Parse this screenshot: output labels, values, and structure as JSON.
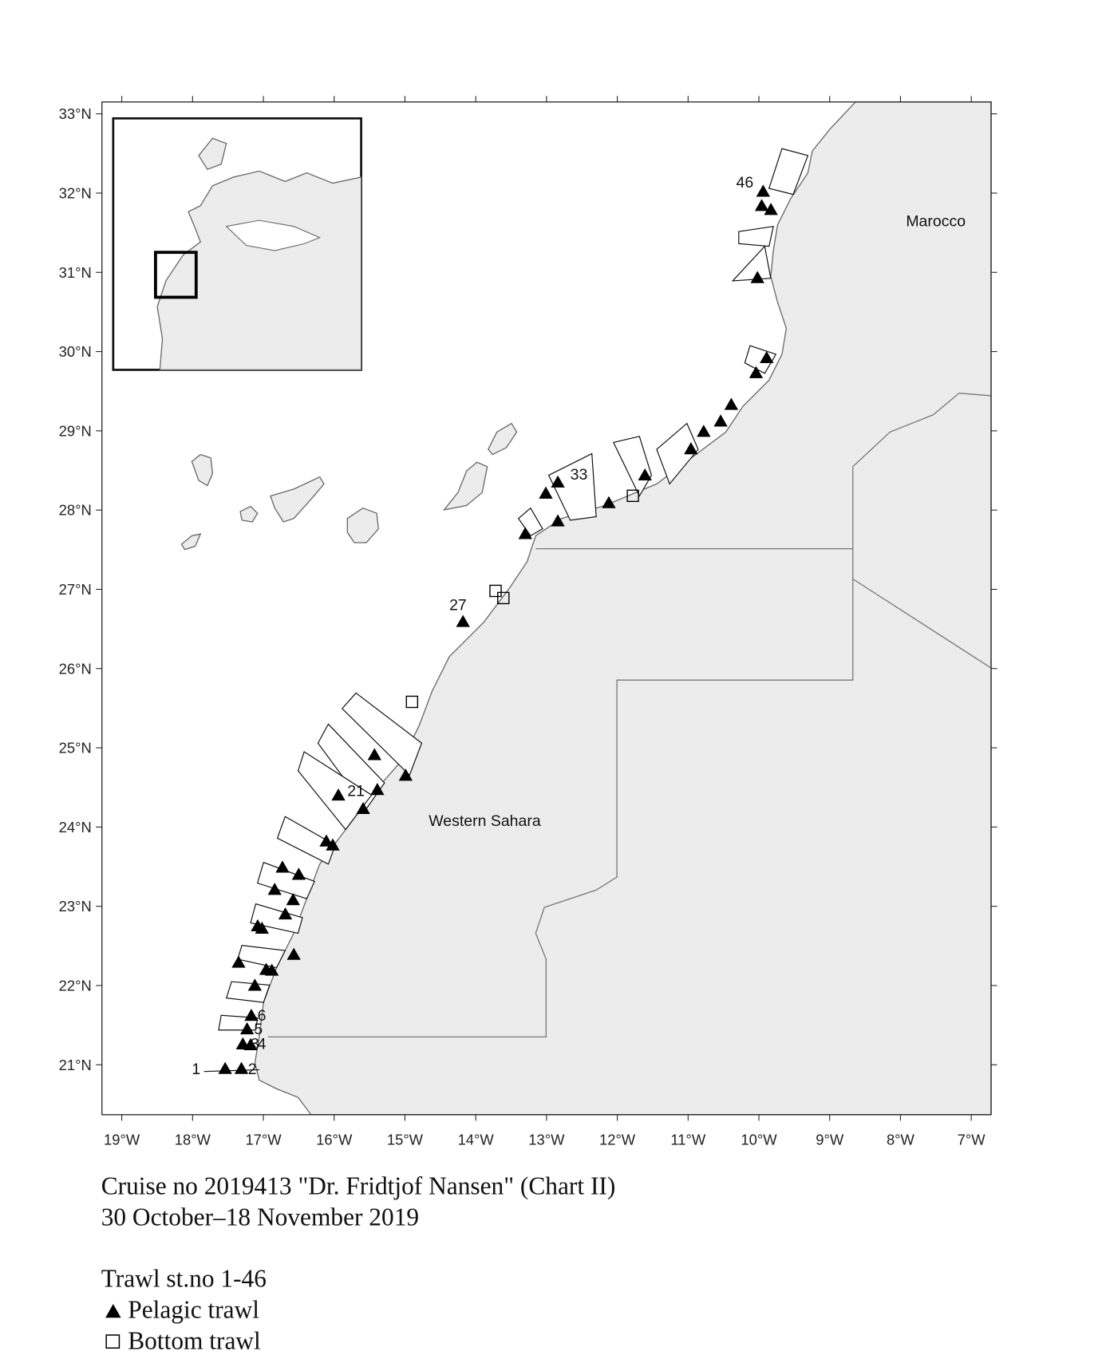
{
  "chart_data": {
    "type": "map",
    "xlim": [
      -19.28,
      -6.72
    ],
    "ylim": [
      20.37,
      33.15
    ],
    "xticks": [
      {
        "value": -19,
        "label": "19°W"
      },
      {
        "value": -18,
        "label": "18°W"
      },
      {
        "value": -17,
        "label": "17°W"
      },
      {
        "value": -16,
        "label": "16°W"
      },
      {
        "value": -15,
        "label": "15°W"
      },
      {
        "value": -14,
        "label": "14°W"
      },
      {
        "value": -13,
        "label": "13°W"
      },
      {
        "value": -12,
        "label": "12°W"
      },
      {
        "value": -11,
        "label": "11°W"
      },
      {
        "value": -10,
        "label": "10°W"
      },
      {
        "value": -9,
        "label": "9°W"
      },
      {
        "value": -8,
        "label": "8°W"
      },
      {
        "value": -7,
        "label": "7°W"
      }
    ],
    "yticks": [
      {
        "value": 21,
        "label": "21°N"
      },
      {
        "value": 22,
        "label": "22°N"
      },
      {
        "value": 23,
        "label": "23°N"
      },
      {
        "value": 24,
        "label": "24°N"
      },
      {
        "value": 25,
        "label": "25°N"
      },
      {
        "value": 26,
        "label": "26°N"
      },
      {
        "value": 27,
        "label": "27°N"
      },
      {
        "value": 28,
        "label": "28°N"
      },
      {
        "value": 29,
        "label": "29°N"
      },
      {
        "value": 30,
        "label": "30°N"
      },
      {
        "value": 31,
        "label": "31°N"
      },
      {
        "value": 32,
        "label": "32°N"
      },
      {
        "value": 33,
        "label": "33°N"
      }
    ],
    "series": [
      {
        "name": "Pelagic trawl",
        "marker": "triangle",
        "color": "#000000",
        "x": [
          -9.94,
          -9.96,
          -9.83,
          -10.02,
          -9.89,
          -10.04,
          -10.39,
          -10.54,
          -10.78,
          -10.96,
          -11.61,
          -12.12,
          -12.84,
          -13.01,
          -12.84,
          -13.3,
          -14.18,
          -14.99,
          -15.43,
          -15.39,
          -15.59,
          -15.94,
          -16.11,
          -16.02,
          -16.73,
          -16.5,
          -16.84,
          -16.58,
          -16.69,
          -17.08,
          -17.02,
          -16.57,
          -17.35,
          -16.96,
          -16.88,
          -17.12,
          -17.17,
          -17.23,
          -17.29,
          -17.18,
          -17.54,
          -17.31
        ],
        "values": [
          32.02,
          31.84,
          31.79,
          30.93,
          29.92,
          29.73,
          29.33,
          29.12,
          28.99,
          28.77,
          28.44,
          28.09,
          28.35,
          28.21,
          27.86,
          27.7,
          26.59,
          24.65,
          24.91,
          24.47,
          24.23,
          24.4,
          23.82,
          23.77,
          23.49,
          23.4,
          23.21,
          23.08,
          22.9,
          22.75,
          22.72,
          22.39,
          22.29,
          22.2,
          22.19,
          22.0,
          21.62,
          21.45,
          21.26,
          21.25,
          20.95,
          20.95
        ]
      },
      {
        "name": "Bottom trawl",
        "marker": "square",
        "color": "#000000",
        "x": [
          -11.78,
          -13.72,
          -13.61,
          -14.9
        ],
        "values": [
          28.18,
          26.98,
          26.89,
          25.58
        ]
      }
    ],
    "station_labels": [
      "46",
      "33",
      "27",
      "21",
      "1",
      "2",
      "3",
      "4",
      "5",
      "6"
    ],
    "regions": [
      "Marocco",
      "Western Sahara"
    ],
    "title": "Cruise no 2019413  \"Dr. Fridtjof Nansen\" (Chart II)",
    "subtitle": "30 October–18 November 2019",
    "legend_title": "Trawl st.no 1-46"
  }
}
